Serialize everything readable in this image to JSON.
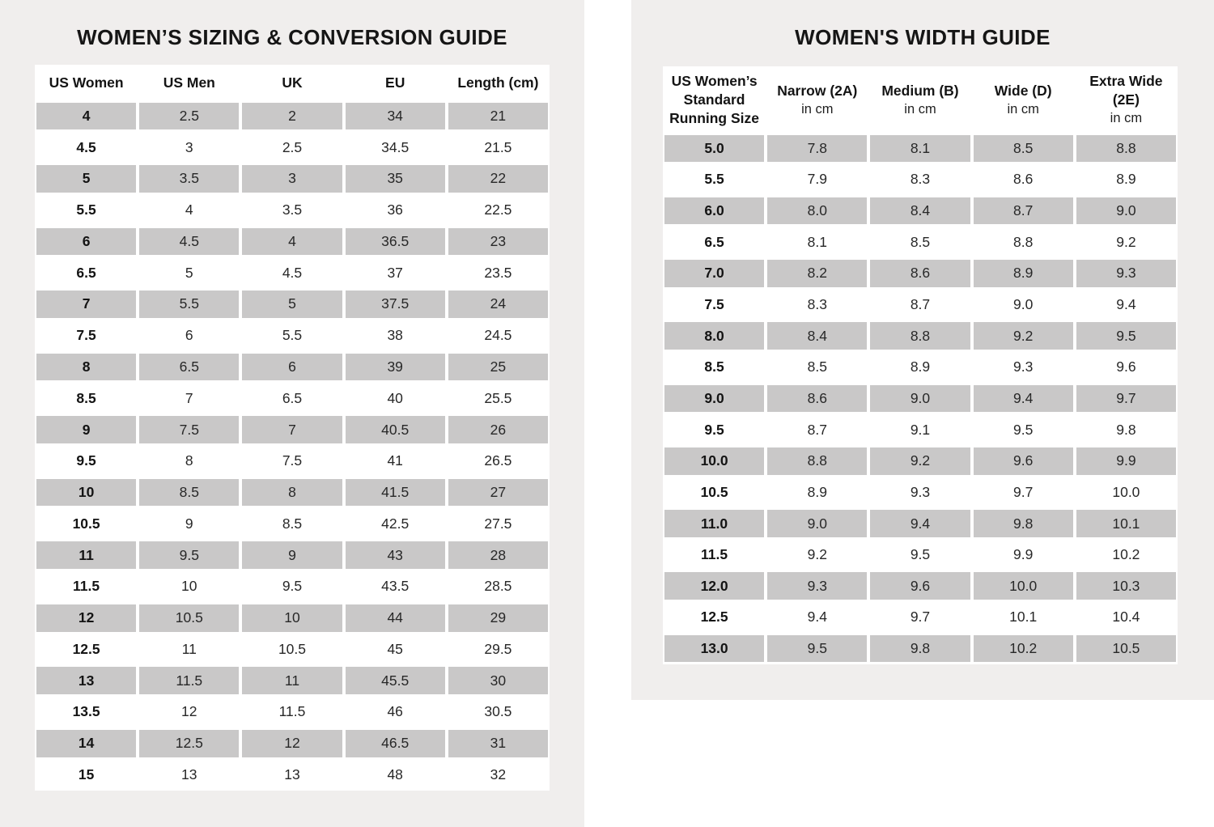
{
  "theme": {
    "page_background": "#ffffff",
    "panel_background": "#f0eeed",
    "row_shade": "#c9c8c8",
    "title_color": "#151515",
    "text_color": "#282828"
  },
  "left_table": {
    "title": "WOMEN’S SIZING & CONVERSION GUIDE",
    "columns": [
      "US Women",
      "US Men",
      "UK",
      "EU",
      "Length (cm)"
    ],
    "rows": [
      [
        "4",
        "2.5",
        "2",
        "34",
        "21"
      ],
      [
        "4.5",
        "3",
        "2.5",
        "34.5",
        "21.5"
      ],
      [
        "5",
        "3.5",
        "3",
        "35",
        "22"
      ],
      [
        "5.5",
        "4",
        "3.5",
        "36",
        "22.5"
      ],
      [
        "6",
        "4.5",
        "4",
        "36.5",
        "23"
      ],
      [
        "6.5",
        "5",
        "4.5",
        "37",
        "23.5"
      ],
      [
        "7",
        "5.5",
        "5",
        "37.5",
        "24"
      ],
      [
        "7.5",
        "6",
        "5.5",
        "38",
        "24.5"
      ],
      [
        "8",
        "6.5",
        "6",
        "39",
        "25"
      ],
      [
        "8.5",
        "7",
        "6.5",
        "40",
        "25.5"
      ],
      [
        "9",
        "7.5",
        "7",
        "40.5",
        "26"
      ],
      [
        "9.5",
        "8",
        "7.5",
        "41",
        "26.5"
      ],
      [
        "10",
        "8.5",
        "8",
        "41.5",
        "27"
      ],
      [
        "10.5",
        "9",
        "8.5",
        "42.5",
        "27.5"
      ],
      [
        "11",
        "9.5",
        "9",
        "43",
        "28"
      ],
      [
        "11.5",
        "10",
        "9.5",
        "43.5",
        "28.5"
      ],
      [
        "12",
        "10.5",
        "10",
        "44",
        "29"
      ],
      [
        "12.5",
        "11",
        "10.5",
        "45",
        "29.5"
      ],
      [
        "13",
        "11.5",
        "11",
        "45.5",
        "30"
      ],
      [
        "13.5",
        "12",
        "11.5",
        "46",
        "30.5"
      ],
      [
        "14",
        "12.5",
        "12",
        "46.5",
        "31"
      ],
      [
        "15",
        "13",
        "13",
        "48",
        "32"
      ]
    ]
  },
  "right_table": {
    "title": "WOMEN'S WIDTH GUIDE",
    "columns": [
      {
        "label": "US Women’s Standard Running Size",
        "sub": ""
      },
      {
        "label": "Narrow (2A)",
        "sub": "in cm"
      },
      {
        "label": "Medium (B)",
        "sub": "in cm"
      },
      {
        "label": "Wide (D)",
        "sub": "in cm"
      },
      {
        "label": "Extra Wide (2E)",
        "sub": "in cm"
      }
    ],
    "rows": [
      [
        "5.0",
        "7.8",
        "8.1",
        "8.5",
        "8.8"
      ],
      [
        "5.5",
        "7.9",
        "8.3",
        "8.6",
        "8.9"
      ],
      [
        "6.0",
        "8.0",
        "8.4",
        "8.7",
        "9.0"
      ],
      [
        "6.5",
        "8.1",
        "8.5",
        "8.8",
        "9.2"
      ],
      [
        "7.0",
        "8.2",
        "8.6",
        "8.9",
        "9.3"
      ],
      [
        "7.5",
        "8.3",
        "8.7",
        "9.0",
        "9.4"
      ],
      [
        "8.0",
        "8.4",
        "8.8",
        "9.2",
        "9.5"
      ],
      [
        "8.5",
        "8.5",
        "8.9",
        "9.3",
        "9.6"
      ],
      [
        "9.0",
        "8.6",
        "9.0",
        "9.4",
        "9.7"
      ],
      [
        "9.5",
        "8.7",
        "9.1",
        "9.5",
        "9.8"
      ],
      [
        "10.0",
        "8.8",
        "9.2",
        "9.6",
        "9.9"
      ],
      [
        "10.5",
        "8.9",
        "9.3",
        "9.7",
        "10.0"
      ],
      [
        "11.0",
        "9.0",
        "9.4",
        "9.8",
        "10.1"
      ],
      [
        "11.5",
        "9.2",
        "9.5",
        "9.9",
        "10.2"
      ],
      [
        "12.0",
        "9.3",
        "9.6",
        "10.0",
        "10.3"
      ],
      [
        "12.5",
        "9.4",
        "9.7",
        "10.1",
        "10.4"
      ],
      [
        "13.0",
        "9.5",
        "9.8",
        "10.2",
        "10.5"
      ]
    ]
  }
}
